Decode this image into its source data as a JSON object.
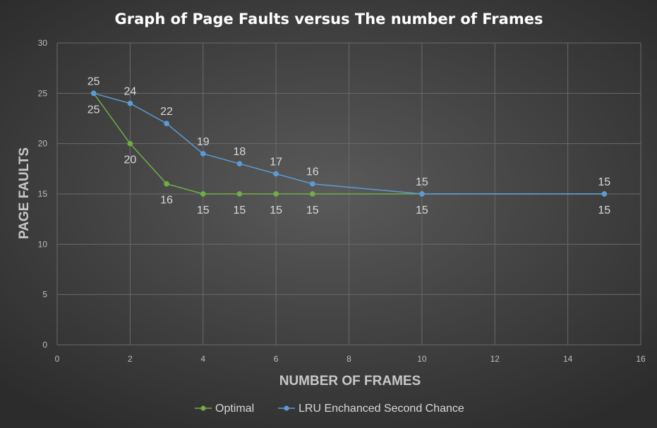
{
  "chart_data": {
    "type": "line",
    "title": "Graph of Page Faults versus The number of Frames",
    "xlabel": "NUMBER OF FRAMES",
    "ylabel": "PAGE FAULTS",
    "xlim": [
      0,
      16
    ],
    "ylim": [
      0,
      30
    ],
    "x_ticks": [
      0,
      2,
      4,
      6,
      8,
      10,
      12,
      14,
      16
    ],
    "y_ticks": [
      0,
      5,
      10,
      15,
      20,
      25,
      30
    ],
    "grid": true,
    "legend_position": "bottom",
    "series": [
      {
        "name": "Optimal",
        "color": "#70ad47",
        "label_position": "below",
        "x": [
          1,
          2,
          3,
          4,
          5,
          6,
          7,
          10,
          15
        ],
        "values": [
          25,
          20,
          16,
          15,
          15,
          15,
          15,
          15,
          15
        ]
      },
      {
        "name": "LRU Enchanced Second Chance",
        "color": "#5b9bd5",
        "label_position": "above",
        "x": [
          1,
          2,
          3,
          4,
          5,
          6,
          7,
          10,
          15
        ],
        "values": [
          25,
          24,
          22,
          19,
          18,
          17,
          16,
          15,
          15
        ]
      }
    ]
  }
}
